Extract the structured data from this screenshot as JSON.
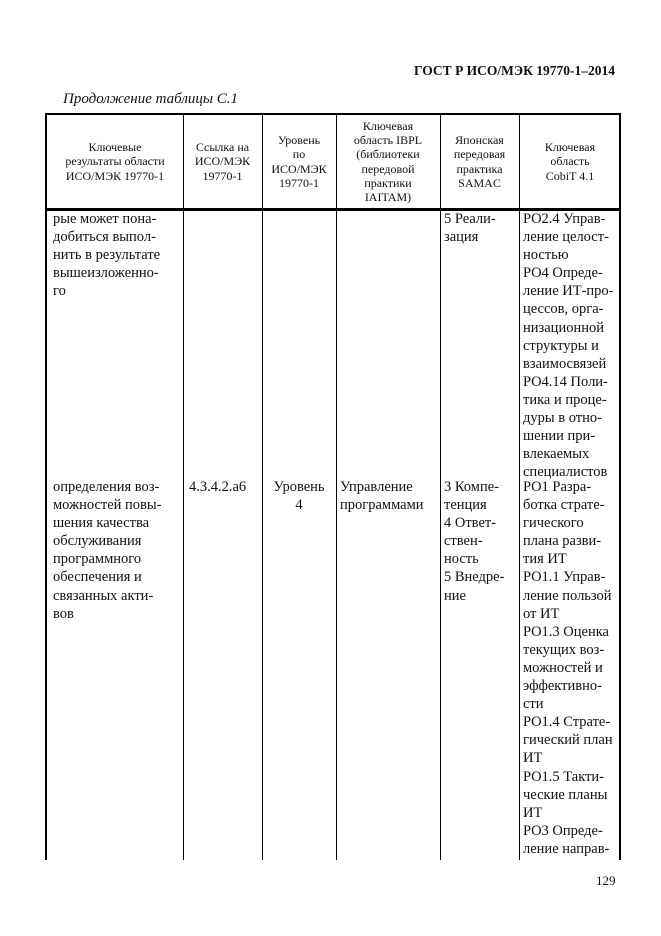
{
  "header": {
    "standard": "ГОСТ Р ИСО/МЭК 19770-1–2014"
  },
  "caption": "Продолжение таблицы С.1",
  "table": {
    "columns": [
      [
        "Ключевые",
        "результаты области",
        "ИСО/МЭК 19770-1"
      ],
      [
        "Ссылка на",
        "ИСО/МЭК",
        "19770-1"
      ],
      [
        "Уровень",
        "по",
        "ИСО/МЭК",
        "19770-1"
      ],
      [
        "Ключевая",
        "область IBPL",
        "(библиотеки",
        "передовой",
        "практики",
        "IAITAM)"
      ],
      [
        "Японская",
        "передовая",
        "практика",
        "SAMAC"
      ],
      [
        "Ключевая",
        "область",
        "CobiT 4.1"
      ]
    ],
    "rows": [
      {
        "result": [
          "рые может пона-",
          "добиться выпол-",
          "нить в результате",
          "вышеизложенно-",
          "го"
        ],
        "reference": [],
        "level": [],
        "ibpl": [],
        "samac": [
          "5 Реали-",
          "зация"
        ],
        "cobit": [
          "PO2.4 Управ-",
          "ление целост-",
          "ностью",
          "PO4 Опреде-",
          "ление ИТ-про-",
          "цессов, орга-",
          "низационной",
          "структуры и",
          "взаимосвязей",
          "PO4.14 Поли-",
          "тика и проце-",
          "дуры в отно-",
          "шении при-",
          "влекаемых",
          "специалистов"
        ]
      },
      {
        "result": [
          "определения воз-",
          "можностей повы-",
          "шения качества",
          "обслуживания",
          "программного",
          "обеспечения и",
          "связанных акти-",
          "вов"
        ],
        "reference": [
          "4.3.4.2.a6"
        ],
        "level": [
          "Уровень",
          "4"
        ],
        "ibpl": [
          "Управление",
          "программами"
        ],
        "samac": [
          "3 Компе-",
          "тенция",
          "4 Ответ-",
          "ствен-",
          "ность",
          "5 Внедре-",
          "ние"
        ],
        "cobit": [
          "PO1 Разра-",
          "ботка страте-",
          "гического",
          "плана разви-",
          "тия ИТ",
          "PO1.1 Управ-",
          "ление пользой",
          "от ИТ",
          "PO1.3 Оценка",
          "текущих воз-",
          "можностей и",
          "эффективно-",
          "сти",
          "PO1.4 Страте-",
          "гический план",
          "ИТ",
          "PO1.5 Такти-",
          "ческие планы",
          "ИТ",
          "PO3 Опреде-",
          "ление направ-"
        ]
      }
    ]
  },
  "page_number": "129"
}
